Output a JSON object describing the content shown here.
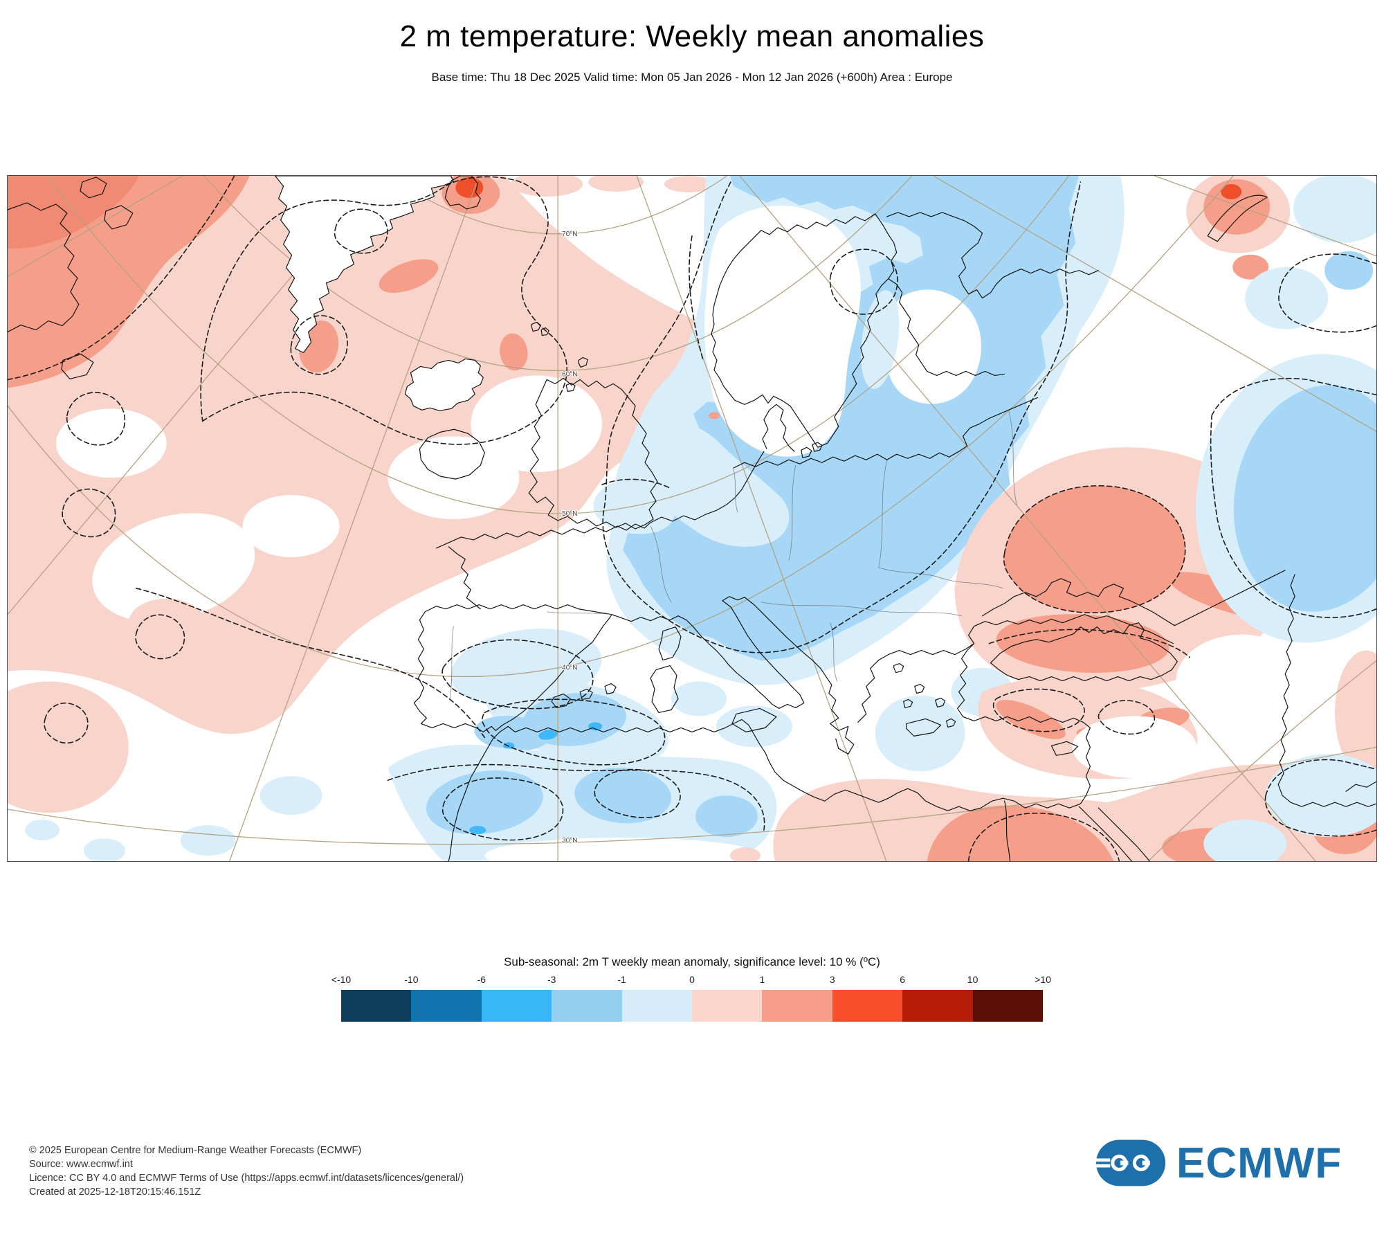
{
  "header": {
    "title": "2 m temperature: Weekly mean anomalies",
    "subtitle": "Base time: Thu 18 Dec 2025 Valid time: Mon 05 Jan 2026 - Mon 12 Jan 2026 (+600h) Area : Europe"
  },
  "map": {
    "lat_labels": [
      "70°N",
      "60°N",
      "50°N",
      "40°N",
      "30°N"
    ],
    "palette": {
      "pink": "#f9d4cb",
      "salmon": "#f59e8a",
      "deep_salmon": "#f08a72",
      "red": "#ef4e2b",
      "blue_light": "#d9eefb",
      "blue_med": "#a6d7f6",
      "blue_bright": "#3eb8f7",
      "white": "#ffffff",
      "graticule": "#b3a383",
      "coast": "#141414",
      "border": "#6a6a6a",
      "contour": "#1c1c1c",
      "label": "#3c3c3c"
    }
  },
  "legend": {
    "title": "Sub-seasonal: 2m T weekly mean anomaly, significance level: 10 % (ºC)",
    "tick_labels": [
      "<-10",
      "-10",
      "-6",
      "-3",
      "-1",
      "0",
      "1",
      "3",
      "6",
      "10",
      ">10"
    ],
    "colors": [
      "#0d3e5c",
      "#1074ae",
      "#38b7f6",
      "#96cef2",
      "#d6ecfa",
      "#fbd6cd",
      "#f79e8b",
      "#f84e2b",
      "#b51d09",
      "#5d0f07"
    ]
  },
  "footer": {
    "lines": [
      "© 2025 European Centre for Medium-Range Weather Forecasts (ECMWF)",
      "Source: www.ecmwf.int",
      "Licence: CC BY 4.0 and ECMWF Terms of Use (https://apps.ecmwf.int/datasets/licences/general/)",
      "Created at 2025-12-18T20:15:46.151Z"
    ]
  },
  "logo": {
    "text": "ECMWF",
    "color": "#1d70ab"
  }
}
